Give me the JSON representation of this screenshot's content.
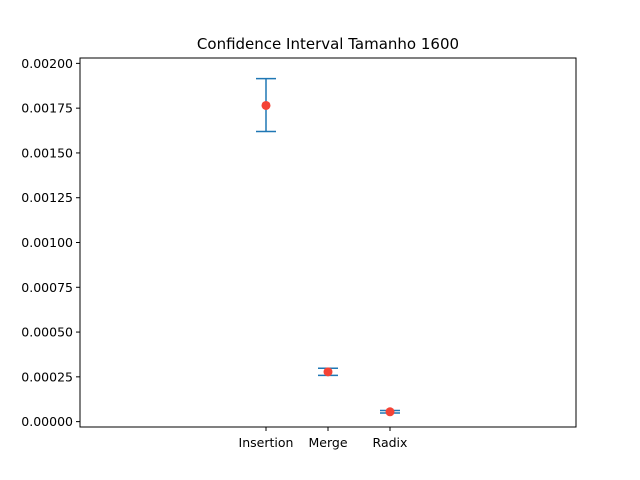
{
  "chart_data": {
    "type": "scatter",
    "title": "Confidence Interval Tamanho 1600",
    "xlabel": "",
    "ylabel": "",
    "categories": [
      "Insertion",
      "Merge",
      "Radix"
    ],
    "x_positions": [
      1,
      2,
      3
    ],
    "xlim": [
      -2,
      6
    ],
    "ylim": [
      -3e-05,
      0.00203
    ],
    "yticks": [
      "0.00000",
      "0.00025",
      "0.00050",
      "0.00075",
      "0.00100",
      "0.00125",
      "0.00150",
      "0.00175",
      "0.00200"
    ],
    "series": [
      {
        "means": [
          0.001765,
          0.000278,
          5.5e-05
        ],
        "lower": [
          0.00162,
          0.000258,
          4.8e-05
        ],
        "upper": [
          0.001915,
          0.000298,
          6.2e-05
        ]
      }
    ],
    "grid": false,
    "colors": {
      "errorbar": "#1f77b4",
      "marker": "#f44336"
    }
  }
}
